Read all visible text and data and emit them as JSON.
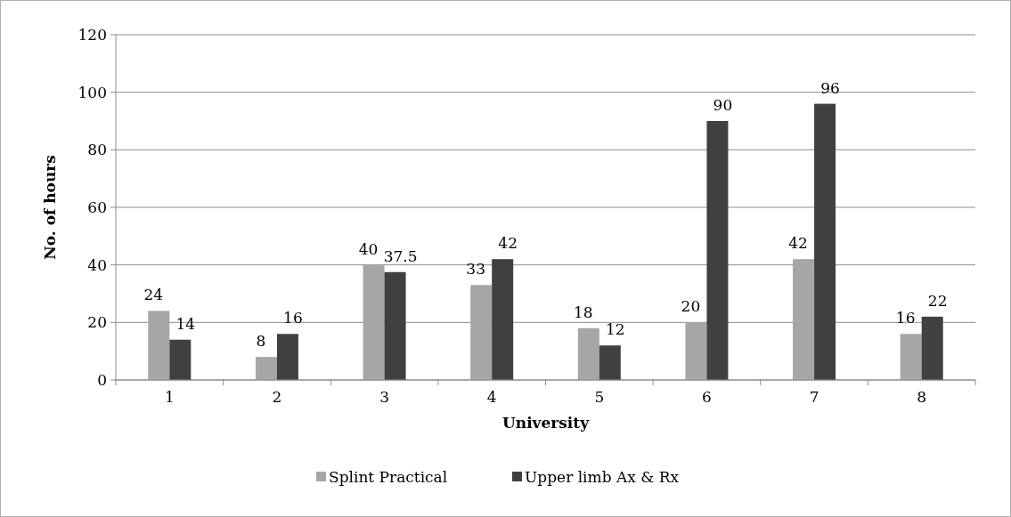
{
  "chart_data": {
    "type": "bar",
    "xlabel": "University",
    "ylabel": "No. of hours",
    "categories": [
      "1",
      "2",
      "3",
      "4",
      "5",
      "6",
      "7",
      "8"
    ],
    "series": [
      {
        "name": "Splint Practical",
        "color": "#a6a6a6",
        "values": [
          24,
          8,
          40,
          33,
          18,
          20,
          42,
          16
        ]
      },
      {
        "name": "Upper limb Ax & Rx",
        "color": "#404040",
        "values": [
          14,
          16,
          37.5,
          42,
          12,
          90,
          96,
          22
        ]
      }
    ],
    "ylim": [
      0,
      120
    ],
    "yticks": [
      0,
      20,
      40,
      60,
      80,
      100,
      120
    ],
    "grid": "y",
    "legend": "bottom",
    "data_labels": true
  }
}
